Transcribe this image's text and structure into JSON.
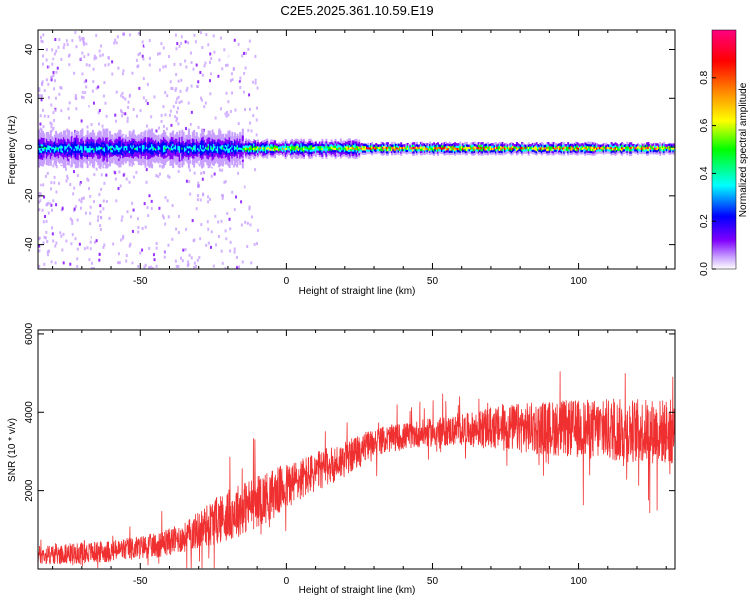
{
  "figure": {
    "title": "C2E5.2025.361.10.59.E19"
  },
  "chart_data": [
    {
      "type": "heatmap",
      "title": "C2E5.2025.361.10.59.E19",
      "xlabel": "Height of straight line (km)",
      "ylabel": "Frequency (Hz)",
      "xlim": [
        -85,
        133
      ],
      "ylim": [
        -50,
        48
      ],
      "xticks": [
        -50,
        0,
        50,
        100
      ],
      "yticks": [
        -40,
        -20,
        0,
        20,
        40
      ],
      "xtick_labels": [
        "-50",
        "0",
        "50",
        "100"
      ],
      "ytick_labels": [
        "-40",
        "-20",
        "0",
        "20",
        "40"
      ],
      "band": {
        "center_hz": 0,
        "description_segments": [
          {
            "x_from": -85,
            "x_to": -15,
            "halfwidth_hz": 6,
            "peak_amplitude": 0.5
          },
          {
            "x_from": -15,
            "x_to": 25,
            "halfwidth_hz": 3,
            "peak_amplitude": 0.75
          },
          {
            "x_from": 25,
            "x_to": 133,
            "halfwidth_hz": 2,
            "peak_amplitude": 0.95
          }
        ],
        "scatter_region_x": [
          -85,
          -10
        ]
      },
      "colorbar": {
        "label": "Normalized spectral amplitude",
        "range": [
          0,
          1
        ],
        "ticks": [
          0.0,
          0.2,
          0.4,
          0.6,
          0.8
        ],
        "tick_labels": [
          "0.0",
          "0.2",
          "0.4",
          "0.6",
          "0.8"
        ],
        "colors": [
          "#ffffff",
          "#c8a0ff",
          "#8000ff",
          "#0000ff",
          "#00ffff",
          "#00ff00",
          "#ffff00",
          "#ff8000",
          "#ff0000",
          "#ff0080"
        ]
      }
    },
    {
      "type": "line",
      "xlabel": "Height of straight line (km)",
      "ylabel": "SNR (10 * v/v)",
      "xlim": [
        -85,
        133
      ],
      "ylim": [
        0,
        6100
      ],
      "xticks": [
        -50,
        0,
        50,
        100
      ],
      "yticks": [
        2000,
        4000,
        6000
      ],
      "xtick_labels": [
        "-50",
        "0",
        "50",
        "100"
      ],
      "ytick_labels": [
        "2000",
        "4000",
        "6000"
      ],
      "series": [
        {
          "name": "SNR",
          "color": "#f03030",
          "trend_x": [
            -85,
            -60,
            -45,
            -35,
            -25,
            -15,
            -5,
            5,
            20,
            30,
            45,
            60,
            75,
            90,
            110,
            133
          ],
          "trend_y": [
            350,
            450,
            600,
            800,
            1200,
            1550,
            1900,
            2300,
            2800,
            3250,
            3450,
            3550,
            3600,
            3600,
            3550,
            3500
          ],
          "noise_y": [
            250,
            280,
            320,
            380,
            600,
            700,
            650,
            550,
            450,
            350,
            350,
            400,
            600,
            700,
            800,
            850
          ]
        }
      ]
    }
  ]
}
